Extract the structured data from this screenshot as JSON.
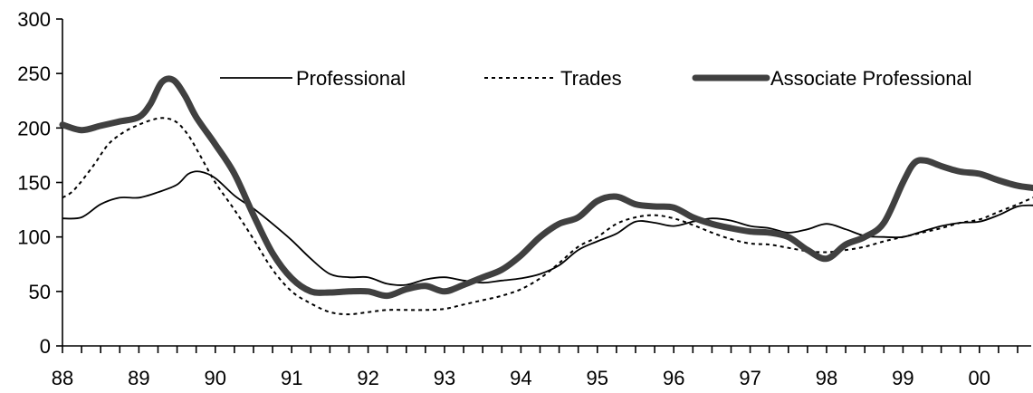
{
  "chart_data": {
    "type": "line",
    "title": "",
    "xlabel": "",
    "ylabel": "",
    "ylim": [
      0,
      300
    ],
    "yticks": [
      "0",
      "50",
      "100",
      "150",
      "200",
      "250",
      "300"
    ],
    "xticks": [
      "88",
      "89",
      "90",
      "91",
      "92",
      "93",
      "94",
      "95",
      "96",
      "97",
      "98",
      "99",
      "00"
    ],
    "xlim": [
      0,
      12.85
    ],
    "legend_position": "top",
    "grid": false,
    "series": [
      {
        "name": "Professional",
        "color": "#000000",
        "style": "solid",
        "x": [
          0,
          0.25,
          0.5,
          0.75,
          1.0,
          1.25,
          1.5,
          1.65,
          1.8,
          2.0,
          2.25,
          2.5,
          2.75,
          3.0,
          3.25,
          3.5,
          3.75,
          4.0,
          4.25,
          4.5,
          4.75,
          5.0,
          5.25,
          5.5,
          5.75,
          6.0,
          6.25,
          6.5,
          6.75,
          7.0,
          7.25,
          7.5,
          7.75,
          8.0,
          8.25,
          8.5,
          8.75,
          9.0,
          9.25,
          9.5,
          9.75,
          10.0,
          10.25,
          10.5,
          10.75,
          11.0,
          11.25,
          11.5,
          11.75,
          12.0,
          12.25,
          12.5,
          12.7,
          12.85
        ],
        "values": [
          117,
          118,
          130,
          136,
          136,
          141,
          148,
          158,
          160,
          154,
          138,
          126,
          112,
          97,
          80,
          66,
          63,
          63,
          57,
          56,
          61,
          63,
          60,
          58,
          60,
          62,
          66,
          74,
          88,
          96,
          103,
          114,
          113,
          110,
          114,
          117,
          115,
          110,
          108,
          104,
          107,
          112,
          107,
          101,
          100,
          100,
          105,
          110,
          113,
          114,
          120,
          128,
          129,
          128
        ]
      },
      {
        "name": "Trades",
        "color": "#000000",
        "style": "dashed",
        "x": [
          0,
          0.15,
          0.4,
          0.6,
          0.8,
          1.0,
          1.2,
          1.35,
          1.5,
          1.65,
          1.8,
          2.0,
          2.25,
          2.5,
          2.75,
          3.0,
          3.25,
          3.5,
          3.75,
          4.0,
          4.25,
          4.5,
          4.75,
          5.0,
          5.25,
          5.5,
          5.75,
          6.0,
          6.25,
          6.5,
          6.75,
          7.0,
          7.25,
          7.5,
          7.75,
          8.0,
          8.25,
          8.5,
          8.75,
          9.0,
          9.25,
          9.5,
          9.75,
          10.0,
          10.25,
          10.5,
          10.75,
          11.0,
          11.25,
          11.5,
          11.75,
          12.0,
          12.25,
          12.5,
          12.7,
          12.85
        ],
        "values": [
          136,
          143,
          165,
          185,
          196,
          203,
          208,
          209,
          205,
          193,
          175,
          150,
          125,
          98,
          70,
          50,
          39,
          31,
          29,
          31,
          33,
          33,
          33,
          34,
          38,
          42,
          46,
          52,
          62,
          76,
          91,
          100,
          112,
          118,
          120,
          117,
          111,
          104,
          98,
          94,
          93,
          90,
          87,
          86,
          88,
          91,
          96,
          100,
          104,
          108,
          113,
          116,
          123,
          130,
          136,
          140
        ]
      },
      {
        "name": "Associate Professional",
        "color": "#404040",
        "style": "thick",
        "x": [
          0,
          0.25,
          0.5,
          0.75,
          1.0,
          1.15,
          1.3,
          1.45,
          1.6,
          1.75,
          2.0,
          2.25,
          2.5,
          2.75,
          3.0,
          3.25,
          3.5,
          3.75,
          4.0,
          4.25,
          4.5,
          4.75,
          5.0,
          5.25,
          5.5,
          5.75,
          6.0,
          6.25,
          6.5,
          6.75,
          7.0,
          7.25,
          7.5,
          7.75,
          8.0,
          8.25,
          8.5,
          8.75,
          9.0,
          9.25,
          9.5,
          9.75,
          10.0,
          10.25,
          10.5,
          10.75,
          11.0,
          11.15,
          11.3,
          11.5,
          11.75,
          12.0,
          12.25,
          12.5,
          12.7,
          12.85
        ],
        "values": [
          203,
          198,
          202,
          206,
          210,
          222,
          242,
          244,
          230,
          210,
          185,
          158,
          120,
          85,
          62,
          50,
          49,
          50,
          50,
          46,
          52,
          55,
          50,
          56,
          63,
          70,
          83,
          100,
          112,
          118,
          133,
          137,
          130,
          128,
          127,
          118,
          112,
          108,
          105,
          104,
          100,
          88,
          80,
          93,
          100,
          113,
          150,
          168,
          170,
          165,
          160,
          158,
          152,
          147,
          145,
          143
        ]
      }
    ]
  }
}
